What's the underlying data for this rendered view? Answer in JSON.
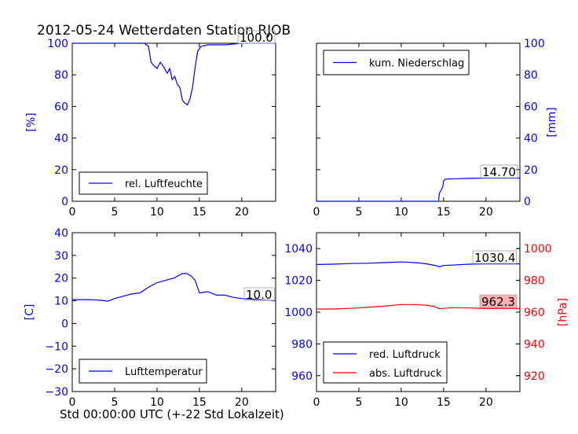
{
  "figure": {
    "title": "2012-05-24 Wetterdaten Station RJOB",
    "xlabel": "Std 00:00:00 UTC (+-22 Std Lokalzeit)"
  },
  "colors": {
    "blue": "#0000ff",
    "red": "#ff0000",
    "black": "#000000"
  },
  "chart_data": [
    {
      "type": "line",
      "panel": "top-left",
      "ylabel": "[%]",
      "xlim": [
        0,
        24
      ],
      "ylim": [
        0,
        100
      ],
      "xticks": [
        "0",
        "5",
        "10",
        "15",
        "20"
      ],
      "yticks": [
        "0",
        "20",
        "40",
        "60",
        "80",
        "100"
      ],
      "legend": "bottom-left",
      "annotation": "100.0",
      "series": [
        {
          "name": "rel. Luftfeuchte",
          "color": "#0000ff",
          "x": [
            0,
            8.5,
            9.0,
            9.3,
            9.6,
            10.0,
            10.4,
            10.8,
            11.2,
            11.5,
            11.8,
            12.1,
            12.4,
            12.7,
            13.0,
            13.3,
            13.6,
            13.9,
            14.2,
            14.5,
            14.8,
            15.2,
            16.0,
            18.0,
            20.0,
            22.0,
            24.0
          ],
          "y": [
            100,
            100,
            98,
            88,
            86,
            84,
            88,
            85,
            81,
            84,
            77,
            79,
            74,
            72,
            64,
            62,
            61,
            65,
            72,
            85,
            95,
            98,
            99,
            99,
            100,
            100,
            100
          ]
        }
      ]
    },
    {
      "type": "line",
      "panel": "top-right",
      "ylabel": "[mm]",
      "xlim": [
        0,
        24
      ],
      "ylim": [
        0,
        100
      ],
      "xticks": [
        "0",
        "5",
        "10",
        "15",
        "20"
      ],
      "yticks": [
        "0",
        "20",
        "40",
        "60",
        "80",
        "100"
      ],
      "legend": "top-left",
      "annotation": "14.70",
      "series": [
        {
          "name": "kum. Niederschlag",
          "color": "#0000ff",
          "x": [
            0,
            14.4,
            14.5,
            14.9,
            15.0,
            15.2,
            16.5,
            18.0,
            20.0,
            24.0
          ],
          "y": [
            0,
            0,
            5,
            9,
            13,
            14,
            14.3,
            14.5,
            14.7,
            14.7
          ]
        }
      ]
    },
    {
      "type": "line",
      "panel": "bottom-left",
      "ylabel": "[C]",
      "xlim": [
        0,
        24
      ],
      "ylim": [
        -30,
        40
      ],
      "xticks": [
        "0",
        "5",
        "10",
        "15",
        "20"
      ],
      "yticks": [
        "−30",
        "−20",
        "−10",
        "0",
        "10",
        "20",
        "30",
        "40"
      ],
      "legend": "bottom-left",
      "annotation": "10.0",
      "series": [
        {
          "name": "Lufttemperatur",
          "color": "#0000ff",
          "x": [
            0,
            2,
            3.5,
            4.2,
            5,
            6,
            7,
            8,
            9,
            9.5,
            10,
            11,
            12,
            13,
            13.5,
            14,
            14.5,
            15,
            16,
            17,
            18,
            19,
            20,
            22,
            24
          ],
          "y": [
            10.5,
            10.5,
            10.2,
            9.8,
            11,
            12,
            13,
            13.5,
            16,
            17,
            18,
            19,
            20,
            22,
            22,
            21,
            19,
            13.5,
            14,
            12.5,
            12.5,
            11.5,
            11,
            10.5,
            10
          ]
        }
      ]
    },
    {
      "type": "line",
      "panel": "bottom-right",
      "xlim": [
        0,
        24
      ],
      "ylim": [
        950,
        1050
      ],
      "xticks": [
        "0",
        "5",
        "10",
        "15",
        "20"
      ],
      "yticks": [
        "960",
        "980",
        "1000",
        "1020",
        "1040"
      ],
      "ylabel_right": "[hPa]",
      "ylim_right": [
        910,
        1010
      ],
      "yticks_right": [
        "920",
        "940",
        "960",
        "980",
        "1000"
      ],
      "legend": "bottom-left",
      "annotations": [
        "1030.4",
        "962.3"
      ],
      "series": [
        {
          "name": "red. Luftdruck",
          "color": "#0000ff",
          "axis": "left",
          "x": [
            0,
            2,
            4,
            6,
            8,
            10,
            11,
            12,
            13,
            14,
            14.5,
            15,
            16,
            18,
            20,
            22,
            24
          ],
          "y": [
            1030,
            1030.2,
            1030.6,
            1030.8,
            1031.2,
            1031.6,
            1031.4,
            1031,
            1030.4,
            1029.4,
            1028.6,
            1029.4,
            1029.6,
            1030.2,
            1030.4,
            1030.4,
            1030.4
          ],
          "label": "1030.4"
        },
        {
          "name": "abs. Luftdruck",
          "color": "#ff0000",
          "axis": "right",
          "x": [
            0,
            2,
            4,
            6,
            8,
            10,
            11,
            12,
            13,
            14,
            14.5,
            15,
            16,
            18,
            20,
            22,
            24
          ],
          "y": [
            962,
            962,
            962.4,
            963,
            963.8,
            964.8,
            964.8,
            964.6,
            964.4,
            963.4,
            962.2,
            962.4,
            962.8,
            962.6,
            962.3,
            962.4,
            962.3
          ],
          "label": "962.3"
        }
      ]
    }
  ]
}
